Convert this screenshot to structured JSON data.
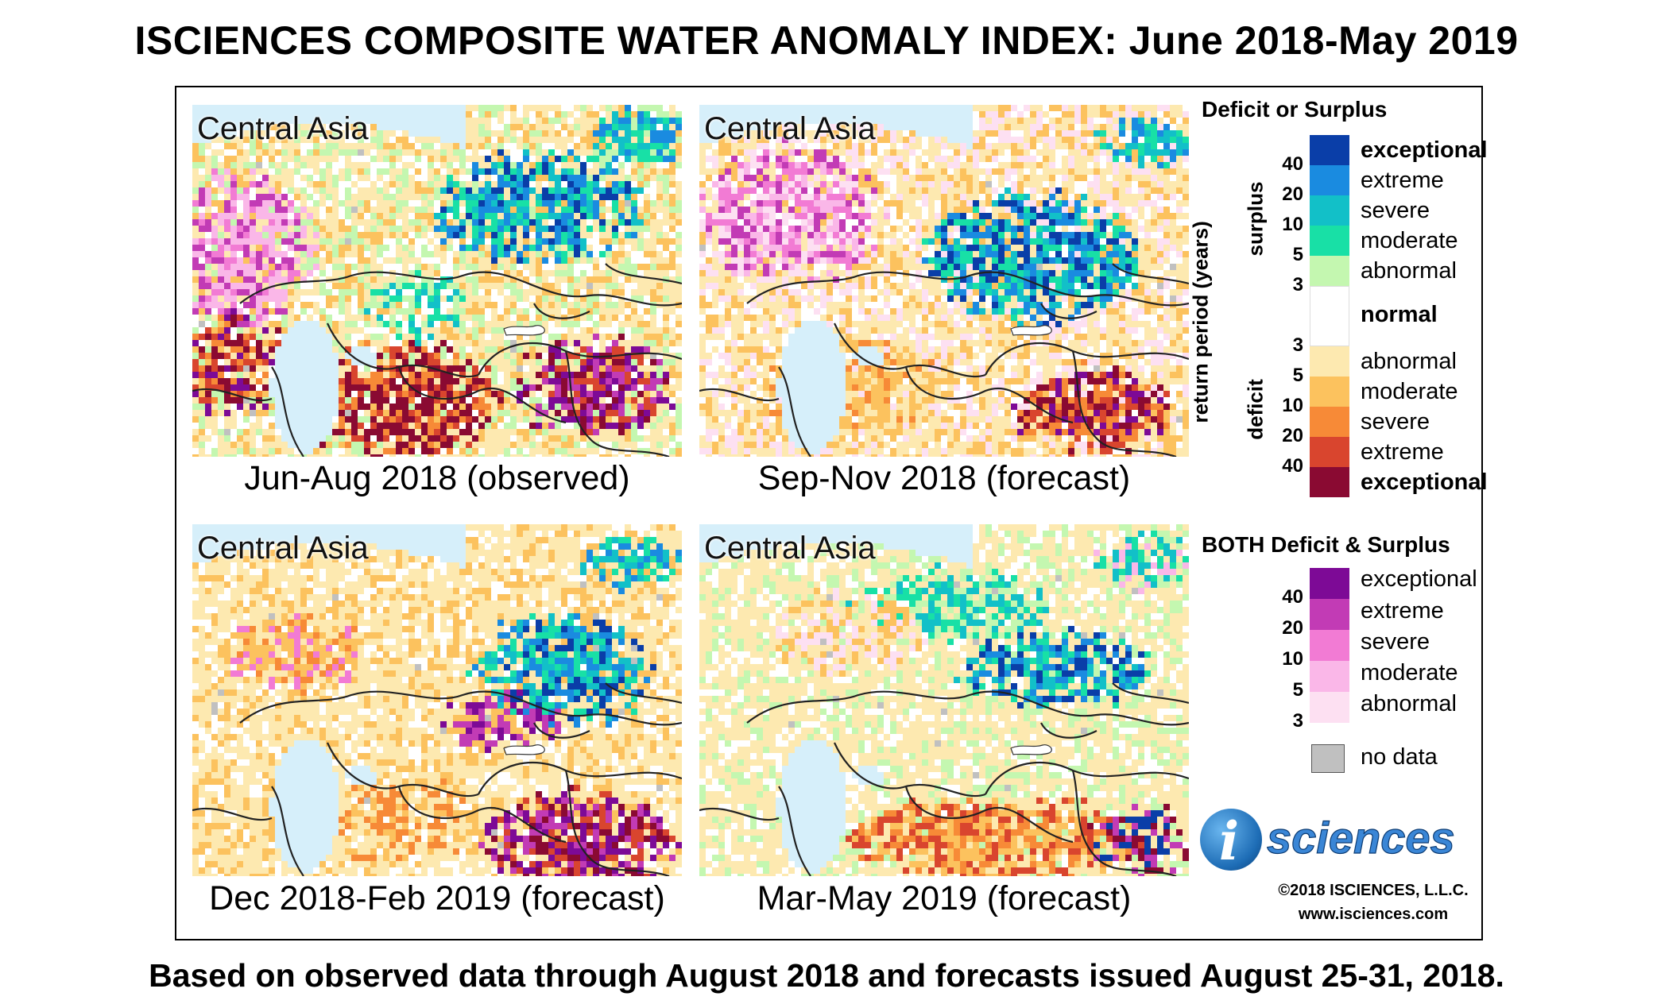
{
  "title": "ISCIENCES COMPOSITE WATER ANOMALY INDEX: June 2018-May 2019",
  "footer": "Based on observed data through August 2018 and forecasts issued August 25-31, 2018.",
  "region_label": "Central Asia",
  "panels": [
    {
      "caption": "Jun-Aug 2018 (observed)",
      "profile": "observed"
    },
    {
      "caption": "Sep-Nov 2018 (forecast)",
      "profile": "autumn"
    },
    {
      "caption": "Dec 2018-Feb 2019 (forecast)",
      "profile": "winter"
    },
    {
      "caption": "Mar-May 2019 (forecast)",
      "profile": "spring"
    }
  ],
  "legend": {
    "heading": "Deficit or Surplus",
    "axis_title": "return period (years)",
    "surplus_label": "surplus",
    "deficit_label": "deficit",
    "surplus": [
      {
        "label": "exceptional",
        "color": "#0a3ea8",
        "bold": true
      },
      {
        "label": "extreme",
        "color": "#1a8be0",
        "bold": false
      },
      {
        "label": "severe",
        "color": "#12c0c8",
        "bold": false
      },
      {
        "label": "moderate",
        "color": "#18e0a6",
        "bold": false
      },
      {
        "label": "abnormal",
        "color": "#c4f7b0",
        "bold": false
      }
    ],
    "surplus_ticks": [
      "40",
      "20",
      "10",
      "5",
      "3"
    ],
    "normal": {
      "label": "normal",
      "color": "#ffffff"
    },
    "deficit": [
      {
        "label": "abnormal",
        "color": "#fde9b0",
        "bold": false
      },
      {
        "label": "moderate",
        "color": "#fcc25e",
        "bold": false
      },
      {
        "label": "severe",
        "color": "#f78a37",
        "bold": false
      },
      {
        "label": "extreme",
        "color": "#d9452e",
        "bold": false
      },
      {
        "label": "exceptional",
        "color": "#8a0a32",
        "bold": true
      }
    ],
    "deficit_ticks": [
      "3",
      "5",
      "10",
      "20",
      "40"
    ],
    "both_heading": "BOTH Deficit & Surplus",
    "both": [
      {
        "label": "exceptional",
        "color": "#7d0a96"
      },
      {
        "label": "extreme",
        "color": "#c23bb5"
      },
      {
        "label": "severe",
        "color": "#f27bd4"
      },
      {
        "label": "moderate",
        "color": "#fab7e8"
      },
      {
        "label": "abnormal",
        "color": "#fde0f2"
      }
    ],
    "both_ticks": [
      "40",
      "20",
      "10",
      "5",
      "3"
    ],
    "nodata": {
      "label": "no data",
      "color": "#c0c0c0"
    }
  },
  "logo": {
    "text": "sciences",
    "letter": "i"
  },
  "copyright": "©2018 ISCIENCES, L.L.C.",
  "website": "www.isciences.com"
}
